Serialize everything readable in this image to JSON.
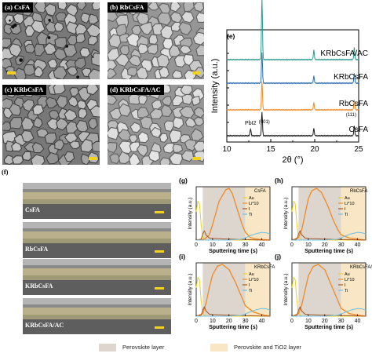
{
  "colors": {
    "black": "#1a1a1a",
    "orange": "#f08a24",
    "blue": "#2a6fb0",
    "teal": "#2a9a8c",
    "au": "#e6d22a",
    "li": "#f08a24",
    "i": "#a8551e",
    "ti": "#6fc0e6",
    "perovskite_band": "#ddd6cf",
    "tio2_band": "#f9e6c4"
  },
  "sem_panels": [
    {
      "label": "(a) CsFA"
    },
    {
      "label": "(b) RbCsFA"
    },
    {
      "label": "(c) KRbCsFA"
    },
    {
      "label": "(d) KRbCsFA/AC"
    }
  ],
  "cross_section": {
    "panel_letter": "(f)",
    "panels": [
      {
        "label": "CsFA"
      },
      {
        "label": "RbCsFA"
      },
      {
        "label": "KRbCsFA"
      },
      {
        "label": "KRbCsFA/AC"
      }
    ]
  },
  "xrd": {
    "panel_letter": "(e)",
    "xlabel": "2θ (°)",
    "ylabel": "Intensity (a.u.)",
    "annotations": {
      "pbi2": "PbI2",
      "peak001": "(001)",
      "peak111": "(111)"
    }
  },
  "sims": {
    "xlabel": "Sputtering time (s)",
    "ylabel": "Intensity (a.u.)",
    "legend": [
      "Au",
      "Li*10",
      "I",
      "Ti"
    ]
  },
  "legend_bottom": {
    "perovskite": "Perovskite layer",
    "perovskite_tio2": "Perovskite and TiO2 layer"
  },
  "chart_data": [
    {
      "type": "line",
      "panel": "(e)",
      "title": "",
      "xlabel": "2θ (°)",
      "ylabel": "Intensity (a.u.)",
      "xlim": [
        10,
        25
      ],
      "xticks": [
        10,
        15,
        20,
        25
      ],
      "grid": false,
      "legend": "labels at right of each trace",
      "series": [
        {
          "name": "CsFA",
          "offset": 0,
          "peaks": [
            [
              12.7,
              0.3
            ],
            [
              14.0,
              1.0
            ],
            [
              19.9,
              0.3
            ],
            [
              24.5,
              0.4
            ]
          ]
        },
        {
          "name": "RbCsFA",
          "offset": 1,
          "peaks": [
            [
              14.0,
              1.2
            ],
            [
              19.9,
              0.3
            ],
            [
              24.5,
              0.4
            ]
          ]
        },
        {
          "name": "KRbCsFA",
          "offset": 2,
          "peaks": [
            [
              14.0,
              1.3
            ],
            [
              19.9,
              0.3
            ],
            [
              24.5,
              0.4
            ]
          ]
        },
        {
          "name": "KRbCsFA/AC",
          "offset": 3,
          "peaks": [
            [
              14.0,
              2.6
            ],
            [
              19.9,
              0.4
            ],
            [
              24.5,
              0.5
            ]
          ]
        }
      ]
    },
    {
      "type": "line",
      "panel": "(g)",
      "title": "CsFA",
      "xlabel": "Sputtering time (s)",
      "ylabel": "Intensity (a.u.)",
      "xlim": [
        0,
        45
      ],
      "xticks": [
        0,
        10,
        20,
        30,
        40
      ],
      "shaded_regions": [
        {
          "type": "perovskite",
          "from": 4,
          "to": 30
        },
        {
          "type": "perovskite_tio2",
          "from": 30,
          "to": 45
        }
      ],
      "series": [
        {
          "name": "Au",
          "x": [
            0,
            1,
            2,
            3,
            4,
            6,
            10,
            20,
            45
          ],
          "y": [
            0.55,
            0.75,
            0.7,
            0.3,
            0.05,
            0.0,
            0.0,
            0.0,
            0.0
          ]
        },
        {
          "name": "Li*10",
          "x": [
            0,
            5,
            8,
            10,
            14,
            18,
            20,
            22,
            25,
            28,
            30,
            33,
            37,
            40,
            45
          ],
          "y": [
            0.0,
            0.02,
            0.1,
            0.3,
            0.75,
            0.97,
            1.0,
            0.9,
            0.6,
            0.3,
            0.15,
            0.05,
            0.02,
            0.01,
            0.0
          ]
        },
        {
          "name": "I",
          "x": [
            0,
            3,
            4,
            5,
            6,
            8,
            10,
            20,
            30,
            40,
            45
          ],
          "y": [
            0.0,
            0.02,
            0.12,
            0.18,
            0.1,
            0.04,
            0.03,
            0.02,
            0.01,
            0.0,
            0.0
          ]
        },
        {
          "name": "Ti",
          "x": [
            0,
            20,
            28,
            32,
            36,
            40,
            43,
            45
          ],
          "y": [
            0.0,
            0.0,
            0.02,
            0.07,
            0.12,
            0.15,
            0.14,
            0.12
          ]
        }
      ]
    },
    {
      "type": "line",
      "panel": "(h)",
      "title": "RbCsFA",
      "xlabel": "Sputtering time (s)",
      "ylabel": "Intensity (a.u.)",
      "xlim": [
        0,
        45
      ],
      "xticks": [
        0,
        10,
        20,
        30,
        40
      ],
      "shaded_regions": [
        {
          "type": "perovskite",
          "from": 4,
          "to": 30
        },
        {
          "type": "perovskite_tio2",
          "from": 30,
          "to": 45
        }
      ],
      "series": [
        {
          "name": "Au",
          "x": [
            0,
            1,
            2,
            3,
            4,
            6,
            10,
            45
          ],
          "y": [
            0.55,
            0.75,
            0.7,
            0.3,
            0.05,
            0.0,
            0.0,
            0.0
          ]
        },
        {
          "name": "Li*10",
          "x": [
            0,
            4,
            6,
            8,
            10,
            12,
            15,
            18,
            22,
            25,
            28,
            30,
            35,
            40,
            45
          ],
          "y": [
            0.0,
            0.05,
            0.2,
            0.5,
            0.8,
            0.95,
            1.0,
            0.92,
            0.65,
            0.4,
            0.2,
            0.1,
            0.04,
            0.02,
            0.0
          ]
        },
        {
          "name": "I",
          "x": [
            0,
            3,
            4,
            5,
            6,
            8,
            10,
            20,
            30,
            45
          ],
          "y": [
            0.0,
            0.02,
            0.12,
            0.18,
            0.1,
            0.04,
            0.03,
            0.02,
            0.01,
            0.0
          ]
        },
        {
          "name": "Ti",
          "x": [
            0,
            20,
            28,
            32,
            36,
            40,
            43,
            45
          ],
          "y": [
            0.0,
            0.0,
            0.02,
            0.07,
            0.12,
            0.15,
            0.14,
            0.12
          ]
        }
      ]
    },
    {
      "type": "line",
      "panel": "(i)",
      "title": "KRbCsFA",
      "xlabel": "Sputtering time (s)",
      "ylabel": "Intensity (a.u.)",
      "xlim": [
        0,
        45
      ],
      "xticks": [
        0,
        10,
        20,
        30,
        40
      ],
      "shaded_regions": [
        {
          "type": "perovskite",
          "from": 4,
          "to": 30
        },
        {
          "type": "perovskite_tio2",
          "from": 30,
          "to": 45
        }
      ],
      "series": [
        {
          "name": "Au",
          "x": [
            0,
            1,
            2,
            3,
            4,
            6,
            10,
            45
          ],
          "y": [
            0.55,
            0.75,
            0.7,
            0.3,
            0.05,
            0.0,
            0.0,
            0.0
          ]
        },
        {
          "name": "Li*10",
          "x": [
            0,
            4,
            6,
            8,
            10,
            13,
            16,
            20,
            24,
            28,
            30,
            35,
            40,
            45
          ],
          "y": [
            0.0,
            0.05,
            0.25,
            0.55,
            0.8,
            0.97,
            1.0,
            0.9,
            0.65,
            0.35,
            0.2,
            0.08,
            0.03,
            0.0
          ]
        },
        {
          "name": "I",
          "x": [
            0,
            3,
            4,
            5,
            6,
            8,
            10,
            20,
            30,
            45
          ],
          "y": [
            0.0,
            0.02,
            0.12,
            0.18,
            0.1,
            0.04,
            0.03,
            0.02,
            0.01,
            0.0
          ]
        },
        {
          "name": "Ti",
          "x": [
            0,
            20,
            28,
            32,
            36,
            40,
            43,
            45
          ],
          "y": [
            0.0,
            0.0,
            0.02,
            0.07,
            0.12,
            0.15,
            0.14,
            0.12
          ]
        }
      ]
    },
    {
      "type": "line",
      "panel": "(j)",
      "title": "KRbCsFA/AC",
      "xlabel": "Sputtering time (s)",
      "ylabel": "Intensity (a.u.)",
      "xlim": [
        0,
        45
      ],
      "xticks": [
        0,
        10,
        20,
        30,
        40
      ],
      "shaded_regions": [
        {
          "type": "perovskite",
          "from": 4,
          "to": 30
        },
        {
          "type": "perovskite_tio2",
          "from": 30,
          "to": 45
        }
      ],
      "series": [
        {
          "name": "Au",
          "x": [
            0,
            1,
            2,
            3,
            4,
            6,
            10,
            45
          ],
          "y": [
            0.55,
            0.75,
            0.7,
            0.3,
            0.05,
            0.0,
            0.0,
            0.0
          ]
        },
        {
          "name": "Li*10",
          "x": [
            0,
            4,
            6,
            8,
            10,
            13,
            16,
            20,
            24,
            28,
            30,
            35,
            40,
            45
          ],
          "y": [
            0.0,
            0.05,
            0.22,
            0.5,
            0.78,
            0.96,
            1.0,
            0.9,
            0.6,
            0.3,
            0.15,
            0.05,
            0.02,
            0.0
          ]
        },
        {
          "name": "I",
          "x": [
            0,
            3,
            4,
            5,
            6,
            8,
            10,
            20,
            30,
            45
          ],
          "y": [
            0.0,
            0.02,
            0.12,
            0.18,
            0.1,
            0.04,
            0.03,
            0.02,
            0.01,
            0.0
          ]
        },
        {
          "name": "Ti",
          "x": [
            0,
            20,
            28,
            32,
            36,
            40,
            43,
            45
          ],
          "y": [
            0.0,
            0.0,
            0.02,
            0.07,
            0.12,
            0.15,
            0.14,
            0.12
          ]
        }
      ]
    }
  ]
}
